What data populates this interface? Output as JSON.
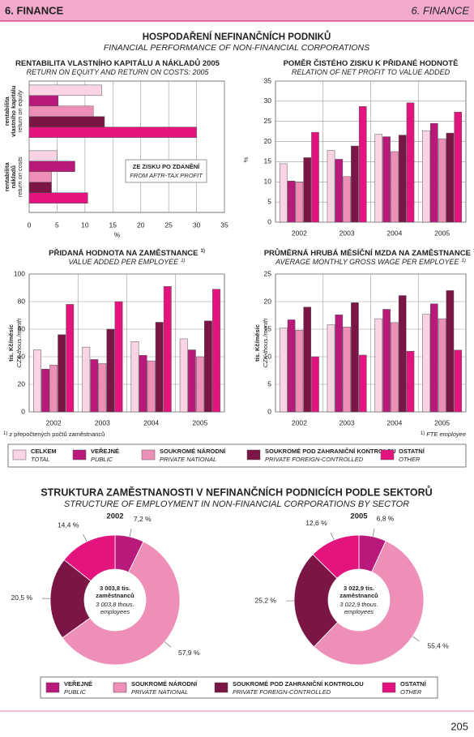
{
  "header": {
    "left": "6. FINANCE",
    "right": "6. FINANCE"
  },
  "title": "HOSPODAŘENÍ NEFINANČNÍCH PODNIKŮ",
  "subtitle": "FINANCIAL PERFORMANCE OF NON-FINANCIAL CORPORATIONS",
  "legend": [
    {
      "name": "CELKEM",
      "name_en": "TOTAL",
      "color": "#fad4e4"
    },
    {
      "name": "VEŘEJNÉ",
      "name_en": "PUBLIC",
      "color": "#b8197a"
    },
    {
      "name": "SOUKROMÉ NÁRODNÍ",
      "name_en": "PRIVATE NATIONAL",
      "color": "#ee8fb8"
    },
    {
      "name": "SOUKROMÉ POD ZAHRANIČNÍ KONTROLOU",
      "name_en": "PRIVATE FOREIGN-CONTROLLED",
      "color": "#7a1545"
    },
    {
      "name": "OSTATNÍ",
      "name_en": "OTHER",
      "color": "#e4147f"
    }
  ],
  "chart_data": [
    {
      "type": "hbar",
      "title": "RENTABILITA VLASTNÍHO KAPITÁLU A NÁKLADŮ 2005",
      "subtitle": "RETURN ON EQUITY AND RETURN ON COSTS: 2005",
      "categories": [
        [
          "rentabilita",
          "vlastního kapitálu"
        ],
        [
          "rentabilita",
          "nákladů"
        ]
      ],
      "categories_en": [
        "return on equity",
        "return on costs"
      ],
      "series": [
        {
          "values": [
            13,
            5
          ]
        },
        {
          "values": [
            5.2,
            8.2
          ]
        },
        {
          "values": [
            11.5,
            4
          ]
        },
        {
          "values": [
            13.5,
            4
          ]
        },
        {
          "values": [
            30,
            10.5
          ]
        }
      ],
      "xlim": [
        0,
        35
      ],
      "xticks": [
        0,
        5,
        10,
        15,
        20,
        25,
        30,
        35
      ],
      "xlabel": "%",
      "grid": true,
      "annotation": [
        "ZE ZISKU PO ZDANĚNÍ",
        "FROM AFTR-TAX PROFIT"
      ]
    },
    {
      "type": "bar",
      "title": "POMĚR ČISTÉHO ZISKU K PŘIDANÉ HODNOTĚ",
      "subtitle": "RELATION OF NET PROFIT TO VALUE ADDED",
      "categories": [
        "2002",
        "2003",
        "2004",
        "2005"
      ],
      "series": [
        {
          "values": [
            14.5,
            17.8,
            21.8,
            22.7
          ]
        },
        {
          "values": [
            10.2,
            15.6,
            21.2,
            24.5
          ]
        },
        {
          "values": [
            9.9,
            11.3,
            17.5,
            20.7
          ]
        },
        {
          "values": [
            16,
            18.9,
            21.6,
            22.1
          ]
        },
        {
          "values": [
            22.3,
            28.7,
            29.6,
            27.3
          ]
        }
      ],
      "ylim": [
        0,
        35
      ],
      "yticks": [
        0,
        5,
        10,
        15,
        20,
        25,
        30,
        35
      ],
      "ylabel": "%",
      "grid": true
    },
    {
      "type": "bar",
      "title": "PŘIDANÁ HODNOTA NA ZAMĚSTNANCE",
      "title_note": "1)",
      "subtitle": "VALUE ADDED PER EMPLOYEE",
      "subtitle_note": "1)",
      "categories": [
        "2002",
        "2003",
        "2004",
        "2005"
      ],
      "series": [
        {
          "values": [
            45,
            47,
            51,
            53
          ]
        },
        {
          "values": [
            31,
            38,
            41,
            45
          ]
        },
        {
          "values": [
            34,
            35,
            37,
            40
          ]
        },
        {
          "values": [
            56,
            60,
            65,
            66
          ]
        },
        {
          "values": [
            78,
            80,
            91,
            89
          ]
        }
      ],
      "ylim": [
        0,
        100
      ],
      "yticks": [
        0,
        20,
        40,
        60,
        80,
        100
      ],
      "ylabel": "tis. Kč/měsíc",
      "ylabel_en": "CZK thous./month",
      "grid": true,
      "footnote_mark": "1)",
      "footnote": "z přepočtených počtů zaměstnanců"
    },
    {
      "type": "bar",
      "title": "PRŮMĚRNÁ HRUBÁ MĚSÍČNÍ MZDA NA ZAMĚSTNANCE",
      "title_note": "1)",
      "subtitle": "AVERAGE MONTHLY GROSS WAGE PER EMPLOYEE",
      "subtitle_note": "1)",
      "categories": [
        "2002",
        "2003",
        "2004",
        "2005"
      ],
      "series": [
        {
          "values": [
            15.2,
            15.8,
            16.9,
            17.7
          ]
        },
        {
          "values": [
            16.7,
            17.6,
            18.6,
            19.6
          ]
        },
        {
          "values": [
            14.8,
            15.4,
            16.2,
            16.9
          ]
        },
        {
          "values": [
            19,
            19.8,
            21.1,
            22
          ]
        },
        {
          "values": [
            10,
            10.3,
            11,
            11.2
          ]
        }
      ],
      "ylim": [
        0,
        25
      ],
      "yticks": [
        0,
        5,
        10,
        15,
        20,
        25
      ],
      "ylabel": "tis. Kč/měsíc",
      "ylabel_en": "CZK thous./month",
      "grid": true,
      "footnote_mark": "1)",
      "footnote": "FTE employee"
    },
    {
      "type": "pie",
      "title": "2002",
      "values": [
        7.2,
        57.9,
        20.5,
        14.4
      ],
      "value_labels": [
        "7,2 %",
        "57,9 %",
        "20,5 %",
        "14,4 %"
      ],
      "center": [
        "3 003,8 tis.",
        "zaměstnanců",
        "3 003,8 thous.",
        "employees"
      ]
    },
    {
      "type": "pie",
      "title": "2005",
      "values": [
        6.8,
        55.4,
        25.2,
        12.6
      ],
      "value_labels": [
        "6,8 %",
        "55,4 %",
        "25,2 %",
        "12,6 %"
      ],
      "center": [
        "3 022,9 tis.",
        "zaměstnanců",
        "3 022,9 thous.",
        "employees"
      ]
    }
  ],
  "section_title": "STRUKTURA ZAMĚSTNANOSTI V NEFINANČNÍCH PODNICÍCH PODLE SEKTORŮ",
  "section_subtitle": "STRUCTURE OF EMPLOYMENT IN NON-FINANCIAL CORPORATIONS BY SECTOR",
  "pie_legend": [
    {
      "name": "VEŘEJNÉ",
      "name_en": "PUBLIC",
      "color": "#b8197a"
    },
    {
      "name": "SOUKROMÉ NÁRODNÍ",
      "name_en": "PRIVATE NATIONAL",
      "color": "#ee8fb8"
    },
    {
      "name": "SOUKROMÉ POD ZAHRANIČNÍ KONTROLOU",
      "name_en": "PRIVATE FOREIGN-CONTROLLED",
      "color": "#7a1545"
    },
    {
      "name": "OSTATNÍ",
      "name_en": "OTHER",
      "color": "#e4147f"
    }
  ],
  "page_number": "205"
}
